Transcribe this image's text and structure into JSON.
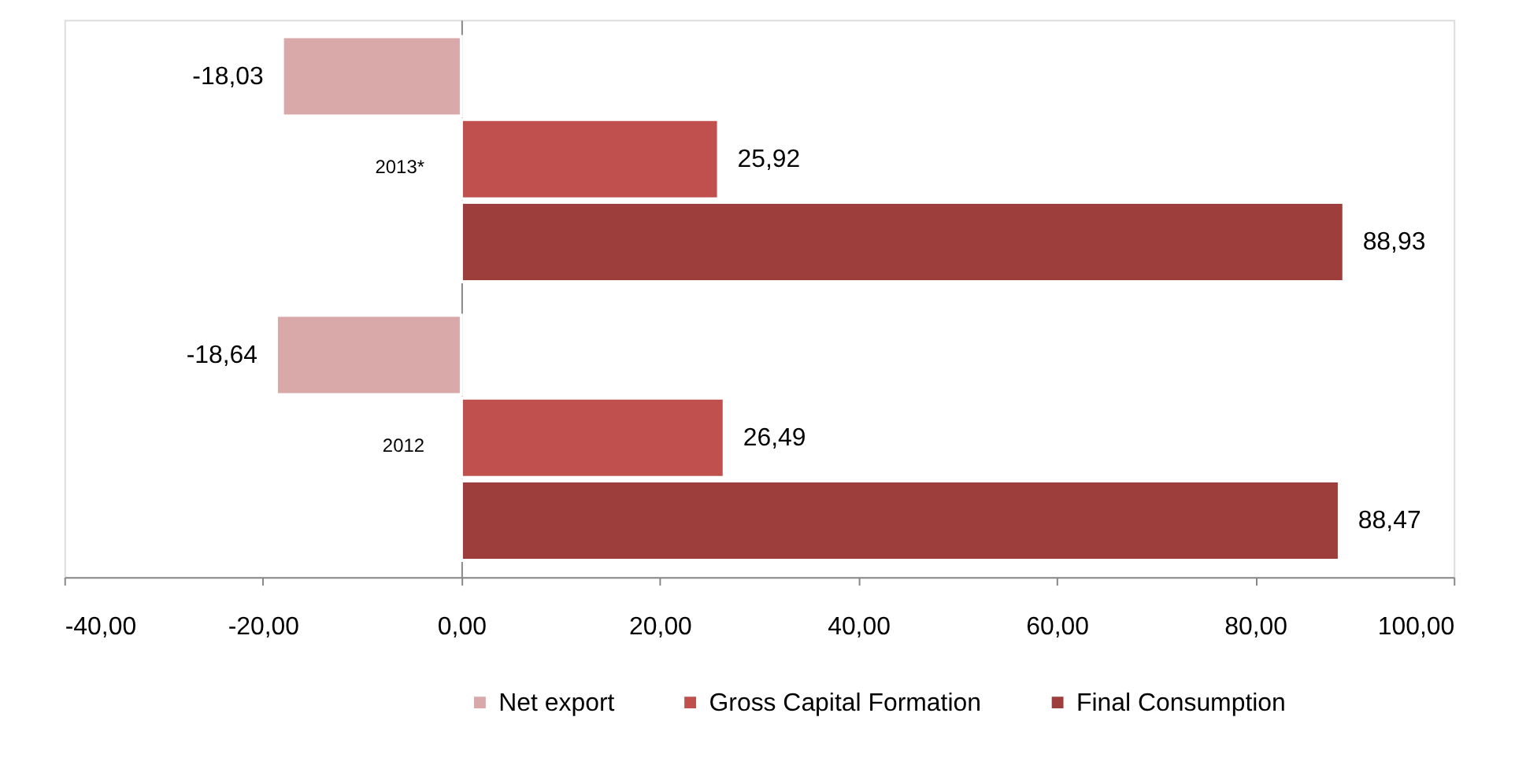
{
  "chart_data": {
    "type": "bar",
    "orientation": "horizontal",
    "categories": [
      "2013*",
      "2012"
    ],
    "series": [
      {
        "name": "Net export",
        "color": "#d9a8a9",
        "values": [
          -18.03,
          -18.64
        ],
        "value_labels": [
          "-18,03",
          "-18,64"
        ]
      },
      {
        "name": "Gross Capital Formation",
        "color": "#c0504d",
        "values": [
          25.92,
          26.49
        ],
        "value_labels": [
          "25,92",
          "26,49"
        ]
      },
      {
        "name": "Final Consumption",
        "color": "#9e3e3c",
        "values": [
          88.93,
          88.47
        ],
        "value_labels": [
          "88,93",
          "88,47"
        ]
      }
    ],
    "xlim": [
      -40,
      100
    ],
    "xticks": [
      {
        "value": -40,
        "label": "-40,00"
      },
      {
        "value": -20,
        "label": "-20,00"
      },
      {
        "value": 0,
        "label": "0,00"
      },
      {
        "value": 20,
        "label": "20,00"
      },
      {
        "value": 40,
        "label": "40,00"
      },
      {
        "value": 60,
        "label": "60,00"
      },
      {
        "value": 80,
        "label": "80,00"
      },
      {
        "value": 100,
        "label": "100,00"
      }
    ],
    "grid": false,
    "legend": "bottom"
  }
}
